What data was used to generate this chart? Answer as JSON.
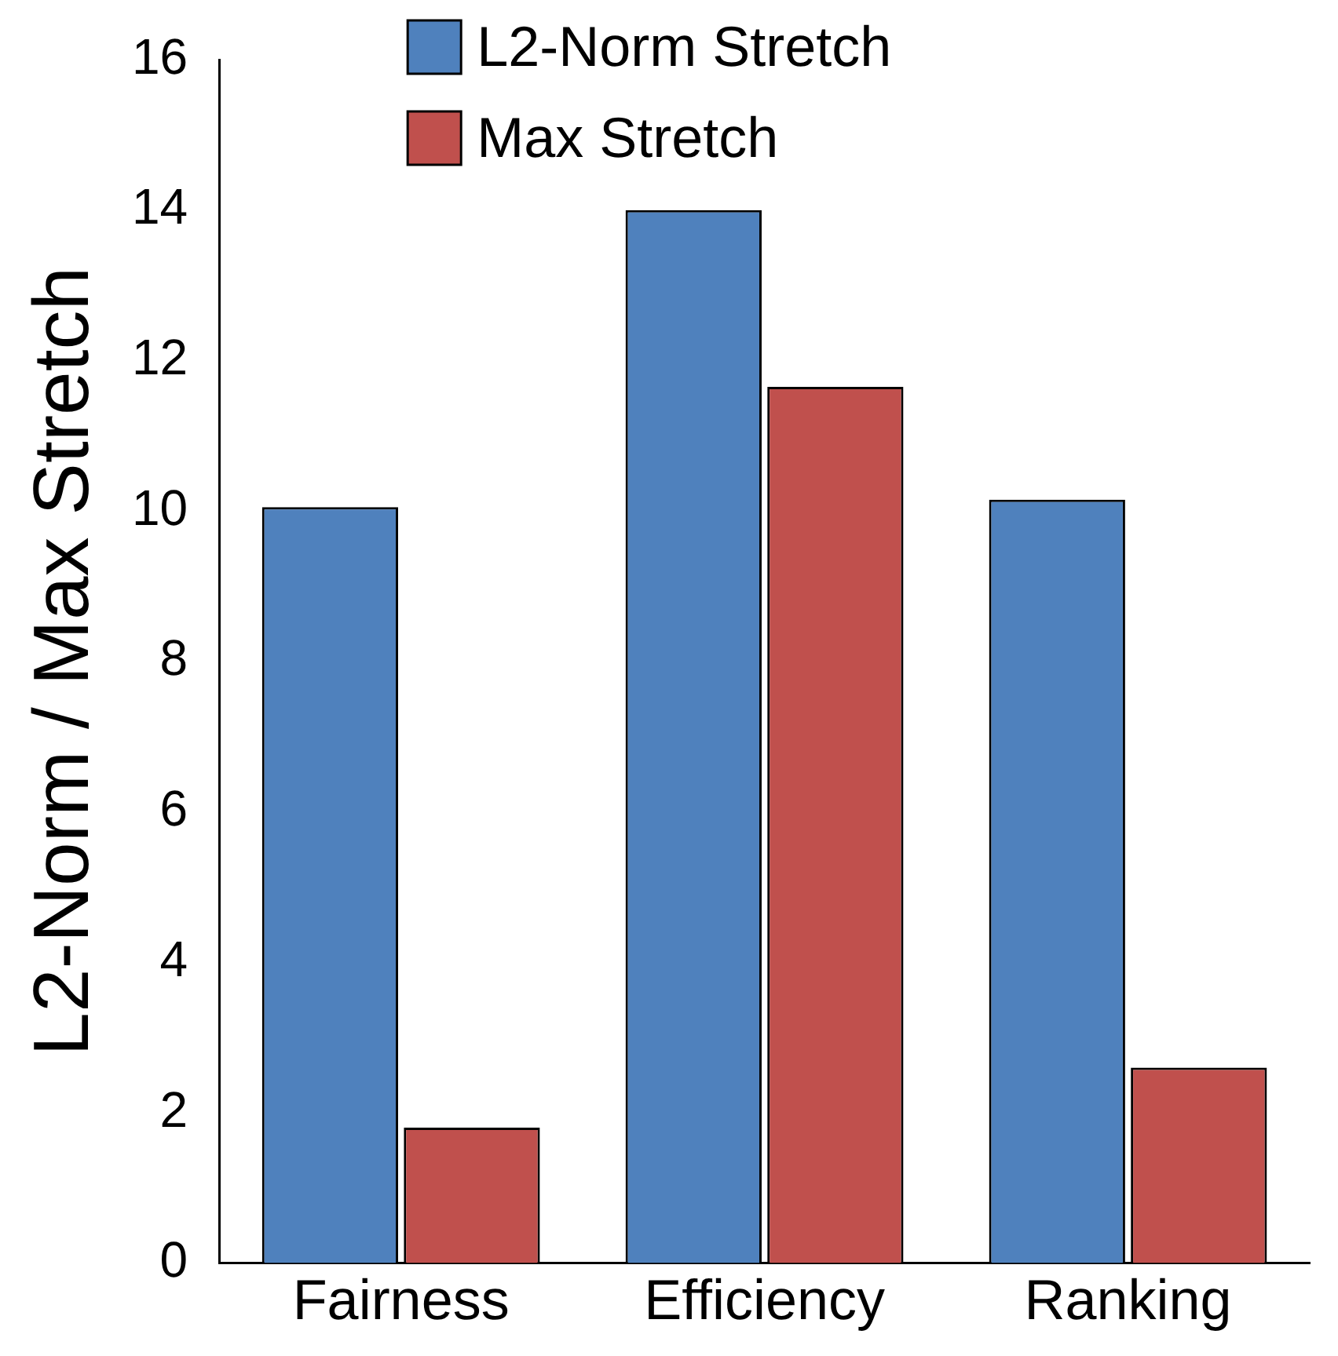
{
  "chart_data": {
    "type": "bar",
    "ylabel": "L2-Norm / Max Stretch",
    "categories": [
      "Fairness",
      "Efficiency",
      "Ranking"
    ],
    "series": [
      {
        "name": "L2-Norm Stretch",
        "color": "#4f81bd",
        "values": [
          10.05,
          14,
          10.15
        ]
      },
      {
        "name": "Max Stretch",
        "color": "#c0504d",
        "values": [
          1.8,
          11.65,
          2.6
        ]
      }
    ],
    "ylim": [
      0,
      16
    ],
    "yticks": [
      0,
      2,
      4,
      6,
      8,
      10,
      12,
      14,
      16
    ],
    "grid": false,
    "legend": "top"
  }
}
